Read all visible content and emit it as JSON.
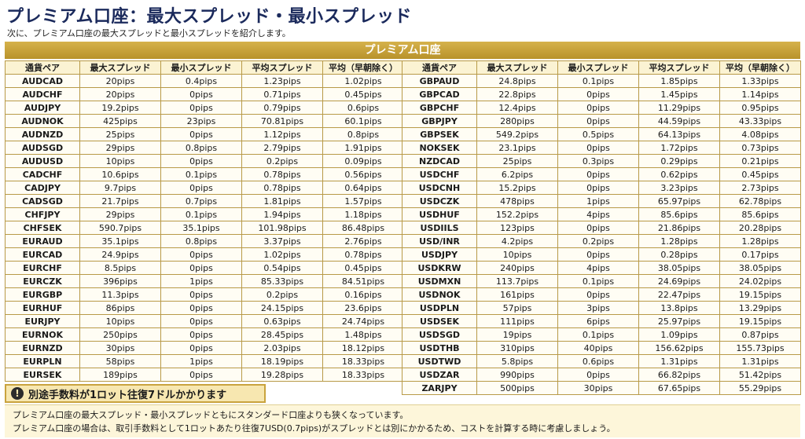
{
  "page": {
    "title": "プレミアム口座：最大スプレッド・最小スプレッド",
    "subtitle": "次に、プレミアム口座の最大スプレッドと最小スプレッドを紹介します。"
  },
  "table": {
    "header": "プレミアム口座",
    "columns": [
      "通貨ペア",
      "最大スプレッド",
      "最小スプレッド",
      "平均スプレッド",
      "平均（早朝除く）"
    ],
    "left_rows": [
      [
        "AUDCAD",
        "20pips",
        "0.4pips",
        "1.23pips",
        "1.02pips"
      ],
      [
        "AUDCHF",
        "20pips",
        "0pips",
        "0.71pips",
        "0.45pips"
      ],
      [
        "AUDJPY",
        "19.2pips",
        "0pips",
        "0.79pips",
        "0.6pips"
      ],
      [
        "AUDNOK",
        "425pips",
        "23pips",
        "70.81pips",
        "60.1pips"
      ],
      [
        "AUDNZD",
        "25pips",
        "0pips",
        "1.12pips",
        "0.8pips"
      ],
      [
        "AUDSGD",
        "29pips",
        "0.8pips",
        "2.79pips",
        "1.91pips"
      ],
      [
        "AUDUSD",
        "10pips",
        "0pips",
        "0.2pips",
        "0.09pips"
      ],
      [
        "CADCHF",
        "10.6pips",
        "0.1pips",
        "0.78pips",
        "0.56pips"
      ],
      [
        "CADJPY",
        "9.7pips",
        "0pips",
        "0.78pips",
        "0.64pips"
      ],
      [
        "CADSGD",
        "21.7pips",
        "0.7pips",
        "1.81pips",
        "1.57pips"
      ],
      [
        "CHFJPY",
        "29pips",
        "0.1pips",
        "1.94pips",
        "1.18pips"
      ],
      [
        "CHFSEK",
        "590.7pips",
        "35.1pips",
        "101.98pips",
        "86.48pips"
      ],
      [
        "EURAUD",
        "35.1pips",
        "0.8pips",
        "3.37pips",
        "2.76pips"
      ],
      [
        "EURCAD",
        "24.9pips",
        "0pips",
        "1.02pips",
        "0.78pips"
      ],
      [
        "EURCHF",
        "8.5pips",
        "0pips",
        "0.54pips",
        "0.45pips"
      ],
      [
        "EURCZK",
        "396pips",
        "1pips",
        "85.33pips",
        "84.51pips"
      ],
      [
        "EURGBP",
        "11.3pips",
        "0pips",
        "0.2pips",
        "0.16pips"
      ],
      [
        "EURHUF",
        "86pips",
        "0pips",
        "24.15pips",
        "23.6pips"
      ],
      [
        "EURJPY",
        "10pips",
        "0pips",
        "0.63pips",
        "24.74pips"
      ],
      [
        "EURNOK",
        "250pips",
        "0pips",
        "28.45pips",
        "1.48pips"
      ],
      [
        "EURNZD",
        "30pips",
        "0pips",
        "2.03pips",
        "18.12pips"
      ],
      [
        "EURPLN",
        "58pips",
        "1pips",
        "18.19pips",
        "18.33pips"
      ],
      [
        "EURSEK",
        "189pips",
        "0pips",
        "19.28pips",
        "18.33pips"
      ]
    ],
    "right_rows": [
      [
        "GBPAUD",
        "24.8pips",
        "0.1pips",
        "1.85pips",
        "1.33pips"
      ],
      [
        "GBPCAD",
        "22.8pips",
        "0pips",
        "1.45pips",
        "1.14pips"
      ],
      [
        "GBPCHF",
        "12.4pips",
        "0pips",
        "11.29pips",
        "0.95pips"
      ],
      [
        "GBPJPY",
        "280pips",
        "0pips",
        "44.59pips",
        "43.33pips"
      ],
      [
        "GBPSEK",
        "549.2pips",
        "0.5pips",
        "64.13pips",
        "4.08pips"
      ],
      [
        "NOKSEK",
        "23.1pips",
        "0pips",
        "1.72pips",
        "0.73pips"
      ],
      [
        "NZDCAD",
        "25pips",
        "0.3pips",
        "0.29pips",
        "0.21pips"
      ],
      [
        "USDCHF",
        "6.2pips",
        "0pips",
        "0.62pips",
        "0.45pips"
      ],
      [
        "USDCNH",
        "15.2pips",
        "0pips",
        "3.23pips",
        "2.73pips"
      ],
      [
        "USDCZK",
        "478pips",
        "1pips",
        "65.97pips",
        "62.78pips"
      ],
      [
        "USDHUF",
        "152.2pips",
        "4pips",
        "85.6pips",
        "85.6pips"
      ],
      [
        "USDIILS",
        "123pips",
        "0pips",
        "21.86pips",
        "20.28pips"
      ],
      [
        "USD/INR",
        "4.2pips",
        "0.2pips",
        "1.28pips",
        "1.28pips"
      ],
      [
        "USDJPY",
        "10pips",
        "0pips",
        "0.28pips",
        "0.17pips"
      ],
      [
        "USDKRW",
        "240pips",
        "4pips",
        "38.05pips",
        "38.05pips"
      ],
      [
        "USDMXN",
        "113.7pips",
        "0.1pips",
        "24.69pips",
        "24.02pips"
      ],
      [
        "USDNOK",
        "161pips",
        "0pips",
        "22.47pips",
        "19.15pips"
      ],
      [
        "USDPLN",
        "57pips",
        "3pips",
        "13.8pips",
        "13.29pips"
      ],
      [
        "USDSEK",
        "111pips",
        "6pips",
        "25.97pips",
        "19.15pips"
      ],
      [
        "USDSGD",
        "19pips",
        "0.1pips",
        "1.09pips",
        "0.87pips"
      ],
      [
        "USDTHB",
        "310pips",
        "40pips",
        "156.62pips",
        "155.73pips"
      ],
      [
        "USDTWD",
        "5.8pips",
        "0.6pips",
        "1.31pips",
        "1.31pips"
      ],
      [
        "USDZAR",
        "990pips",
        "0pips",
        "66.82pips",
        "51.42pips"
      ],
      [
        "ZARJPY",
        "500pips",
        "30pips",
        "67.65pips",
        "55.29pips"
      ]
    ]
  },
  "note": {
    "icon": "exclamation-icon",
    "text": "別途手数料が1ロット往復7ドルかかります"
  },
  "footer": {
    "line1": "プレミアム口座の最大スプレッド・最小スプレッドともにスタンダード口座よりも狭くなっています。",
    "line2": "プレミアム口座の場合は、取引手数料として1ロットあたり往復7USD(0.7pips)がスプレッドとは別にかかるため、コストを計算する時に考慮しましょう。"
  },
  "colors": {
    "title": "#1b2a5c",
    "gold_header": "#c9a33e",
    "column_header_bg": "#fbf3d3",
    "note_bg": "#f7e7b0"
  }
}
